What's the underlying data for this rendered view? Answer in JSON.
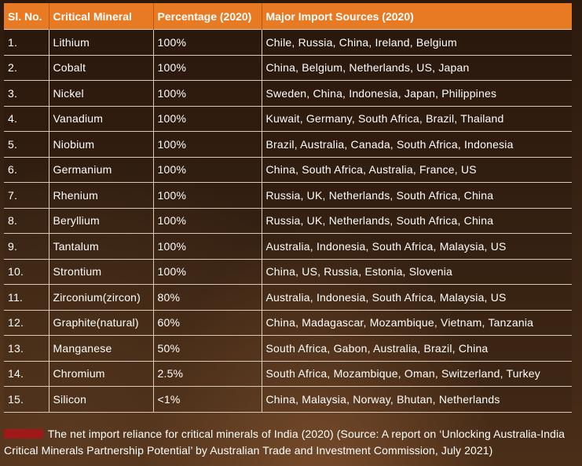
{
  "table": {
    "headers": [
      "Sl. No.",
      "Critical Mineral",
      "Percentage (2020)",
      "Major Import Sources (2020)"
    ],
    "rows": [
      {
        "no": "1.",
        "mineral": "Lithium",
        "pct": "100%",
        "sources": "Chile, Russia, China, Ireland, Belgium"
      },
      {
        "no": "2.",
        "mineral": "Cobalt",
        "pct": "100%",
        "sources": "China, Belgium, Netherlands, US, Japan"
      },
      {
        "no": "3.",
        "mineral": "Nickel",
        "pct": "100%",
        "sources": "Sweden, China, Indonesia, Japan, Philippines"
      },
      {
        "no": "4.",
        "mineral": "Vanadium",
        "pct": "100%",
        "sources": "Kuwait, Germany, South Africa, Brazil, Thailand"
      },
      {
        "no": "5.",
        "mineral": "Niobium",
        "pct": "100%",
        "sources": "Brazil, Australia, Canada, South Africa, Indonesia"
      },
      {
        "no": "6.",
        "mineral": "Germanium",
        "pct": "100%",
        "sources": "China, South Africa, Australia, France, US"
      },
      {
        "no": "7.",
        "mineral": "Rhenium",
        "pct": "100%",
        "sources": "Russia, UK, Netherlands, South Africa, China"
      },
      {
        "no": "8.",
        "mineral": "Beryllium",
        "pct": "100%",
        "sources": "Russia, UK, Netherlands, South Africa, China"
      },
      {
        "no": "9.",
        "mineral": "Tantalum",
        "pct": "100%",
        "sources": "Australia, Indonesia, South Africa, Malaysia, US"
      },
      {
        "no": "10.",
        "mineral": "Strontium",
        "pct": "100%",
        "sources": "China, US, Russia, Estonia, Slovenia"
      },
      {
        "no": "11.",
        "mineral": "Zirconium(zircon)",
        "pct": "80%",
        "sources": "Australia, Indonesia, South Africa, Malaysia, US"
      },
      {
        "no": "12.",
        "mineral": "Graphite(natural)",
        "pct": "60%",
        "sources": "China, Madagascar, Mozambique, Vietnam, Tanzania"
      },
      {
        "no": "13.",
        "mineral": "Manganese",
        "pct": "50%",
        "sources": "South Africa, Gabon, Australia, Brazil, China"
      },
      {
        "no": "14.",
        "mineral": "Chromium",
        "pct": "2.5%",
        "sources": "South Africa, Mozambique, Oman, Switzerland, Turkey"
      },
      {
        "no": "15.",
        "mineral": "Silicon",
        "pct": "<1%",
        "sources": "China, Malaysia, Norway, Bhutan, Netherlands"
      }
    ]
  },
  "caption": {
    "text": "The net import reliance for critical minerals of India (2020) (Source: A report on ‘Unlocking Australia-India Critical Minerals Partnership Potential’ by Australian Trade and Investment Commission, July 2021)"
  },
  "colors": {
    "header_bg": "#e87a24",
    "caption_marker": "#a01818"
  }
}
